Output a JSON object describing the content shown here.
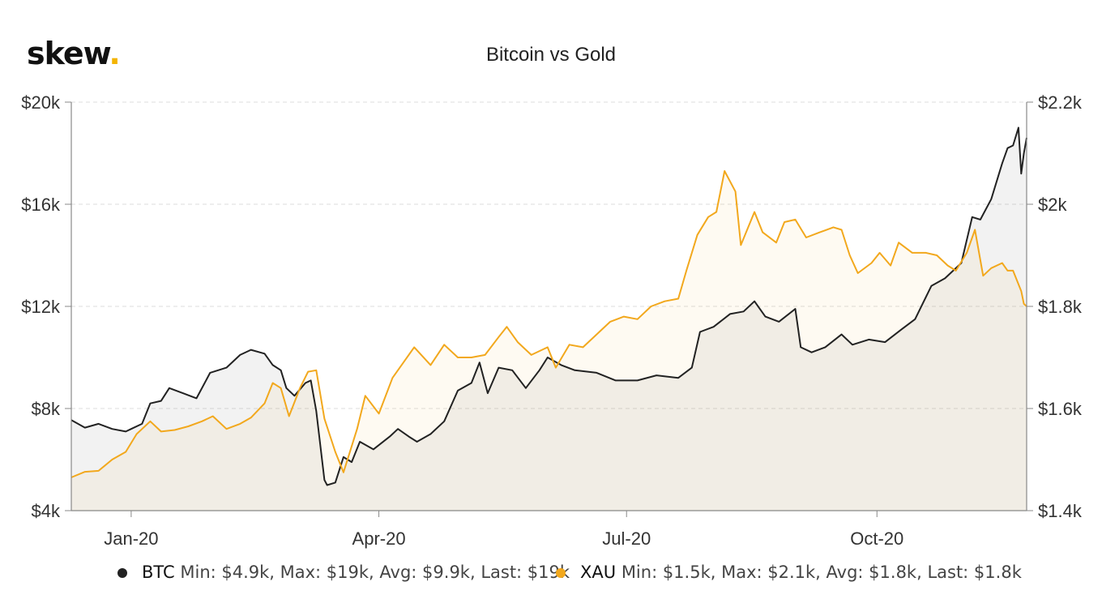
{
  "logo": {
    "text": "skew",
    "dot": "."
  },
  "colors": {
    "btc": "#222222",
    "xau": "#f2a81d",
    "grid": "#dddddd",
    "axis": "#888888"
  },
  "legend": {
    "btc": {
      "name": "BTC",
      "stats": "Min: $4.9k, Max: $19k, Avg: $9.9k, Last: $19k"
    },
    "xau": {
      "name": "XAU",
      "stats": "Min: $1.5k, Max: $2.1k, Avg: $1.8k, Last: $1.8k"
    }
  },
  "chart_data": {
    "type": "line",
    "title": "Bitcoin vs Gold",
    "x_ticks": [
      "Jan-20",
      "Apr-20",
      "Jul-20",
      "Oct-20"
    ],
    "y_left": {
      "ticks": [
        "$20k",
        "$16k",
        "$12k",
        "$8k",
        "$4k"
      ],
      "range": [
        4000,
        20000
      ]
    },
    "y_right": {
      "ticks": [
        "$2.2k",
        "$2k",
        "$1.8k",
        "$1.6k",
        "$1.4k"
      ],
      "range": [
        1400,
        2200
      ]
    },
    "grid": true,
    "legend_position": "bottom",
    "x_range": [
      "2019-12-10",
      "2020-11-25"
    ],
    "series": [
      {
        "name": "BTC",
        "axis": "left",
        "points": [
          [
            "2019-12-10",
            7550
          ],
          [
            "2019-12-15",
            7250
          ],
          [
            "2019-12-20",
            7400
          ],
          [
            "2019-12-25",
            7200
          ],
          [
            "2019-12-30",
            7100
          ],
          [
            "2020-01-01",
            7200
          ],
          [
            "2020-01-05",
            7400
          ],
          [
            "2020-01-08",
            8200
          ],
          [
            "2020-01-12",
            8300
          ],
          [
            "2020-01-15",
            8800
          ],
          [
            "2020-01-20",
            8600
          ],
          [
            "2020-01-25",
            8400
          ],
          [
            "2020-01-30",
            9400
          ],
          [
            "2020-02-05",
            9600
          ],
          [
            "2020-02-10",
            10100
          ],
          [
            "2020-02-14",
            10300
          ],
          [
            "2020-02-19",
            10150
          ],
          [
            "2020-02-22",
            9700
          ],
          [
            "2020-02-25",
            9500
          ],
          [
            "2020-02-27",
            8800
          ],
          [
            "2020-03-01",
            8500
          ],
          [
            "2020-03-05",
            9000
          ],
          [
            "2020-03-07",
            9100
          ],
          [
            "2020-03-09",
            7900
          ],
          [
            "2020-03-12",
            5200
          ],
          [
            "2020-03-13",
            5000
          ],
          [
            "2020-03-16",
            5100
          ],
          [
            "2020-03-19",
            6100
          ],
          [
            "2020-03-22",
            5900
          ],
          [
            "2020-03-25",
            6700
          ],
          [
            "2020-03-30",
            6400
          ],
          [
            "2020-04-05",
            6900
          ],
          [
            "2020-04-08",
            7200
          ],
          [
            "2020-04-12",
            6900
          ],
          [
            "2020-04-15",
            6700
          ],
          [
            "2020-04-20",
            7000
          ],
          [
            "2020-04-25",
            7500
          ],
          [
            "2020-04-30",
            8700
          ],
          [
            "2020-05-05",
            9000
          ],
          [
            "2020-05-08",
            9800
          ],
          [
            "2020-05-11",
            8600
          ],
          [
            "2020-05-15",
            9600
          ],
          [
            "2020-05-20",
            9500
          ],
          [
            "2020-05-25",
            8800
          ],
          [
            "2020-05-30",
            9500
          ],
          [
            "2020-06-02",
            10000
          ],
          [
            "2020-06-07",
            9700
          ],
          [
            "2020-06-12",
            9500
          ],
          [
            "2020-06-20",
            9400
          ],
          [
            "2020-06-27",
            9100
          ],
          [
            "2020-07-05",
            9100
          ],
          [
            "2020-07-12",
            9300
          ],
          [
            "2020-07-20",
            9200
          ],
          [
            "2020-07-25",
            9600
          ],
          [
            "2020-07-28",
            11000
          ],
          [
            "2020-08-02",
            11200
          ],
          [
            "2020-08-08",
            11700
          ],
          [
            "2020-08-13",
            11800
          ],
          [
            "2020-08-17",
            12200
          ],
          [
            "2020-08-21",
            11600
          ],
          [
            "2020-08-26",
            11400
          ],
          [
            "2020-09-01",
            11900
          ],
          [
            "2020-09-03",
            10400
          ],
          [
            "2020-09-07",
            10200
          ],
          [
            "2020-09-12",
            10400
          ],
          [
            "2020-09-18",
            10900
          ],
          [
            "2020-09-22",
            10500
          ],
          [
            "2020-09-28",
            10700
          ],
          [
            "2020-10-04",
            10600
          ],
          [
            "2020-10-10",
            11100
          ],
          [
            "2020-10-15",
            11500
          ],
          [
            "2020-10-21",
            12800
          ],
          [
            "2020-10-26",
            13100
          ],
          [
            "2020-11-01",
            13700
          ],
          [
            "2020-11-05",
            15500
          ],
          [
            "2020-11-08",
            15400
          ],
          [
            "2020-11-12",
            16200
          ],
          [
            "2020-11-16",
            17600
          ],
          [
            "2020-11-18",
            18200
          ],
          [
            "2020-11-20",
            18300
          ],
          [
            "2020-11-22",
            19000
          ],
          [
            "2020-11-23",
            17200
          ],
          [
            "2020-11-24",
            18000
          ],
          [
            "2020-11-25",
            18600
          ]
        ]
      },
      {
        "name": "XAU",
        "axis": "right",
        "points": [
          [
            "2019-12-10",
            1465
          ],
          [
            "2019-12-15",
            1476
          ],
          [
            "2019-12-20",
            1478
          ],
          [
            "2019-12-25",
            1500
          ],
          [
            "2019-12-30",
            1515
          ],
          [
            "2020-01-03",
            1550
          ],
          [
            "2020-01-08",
            1575
          ],
          [
            "2020-01-12",
            1555
          ],
          [
            "2020-01-17",
            1558
          ],
          [
            "2020-01-22",
            1565
          ],
          [
            "2020-01-27",
            1575
          ],
          [
            "2020-01-31",
            1585
          ],
          [
            "2020-02-05",
            1560
          ],
          [
            "2020-02-10",
            1570
          ],
          [
            "2020-02-14",
            1582
          ],
          [
            "2020-02-19",
            1610
          ],
          [
            "2020-02-22",
            1650
          ],
          [
            "2020-02-25",
            1640
          ],
          [
            "2020-02-28",
            1585
          ],
          [
            "2020-03-03",
            1640
          ],
          [
            "2020-03-06",
            1672
          ],
          [
            "2020-03-09",
            1675
          ],
          [
            "2020-03-12",
            1580
          ],
          [
            "2020-03-16",
            1515
          ],
          [
            "2020-03-19",
            1475
          ],
          [
            "2020-03-24",
            1560
          ],
          [
            "2020-03-27",
            1625
          ],
          [
            "2020-04-01",
            1590
          ],
          [
            "2020-04-06",
            1660
          ],
          [
            "2020-04-10",
            1690
          ],
          [
            "2020-04-14",
            1720
          ],
          [
            "2020-04-20",
            1685
          ],
          [
            "2020-04-25",
            1725
          ],
          [
            "2020-04-30",
            1700
          ],
          [
            "2020-05-05",
            1700
          ],
          [
            "2020-05-10",
            1705
          ],
          [
            "2020-05-15",
            1740
          ],
          [
            "2020-05-18",
            1760
          ],
          [
            "2020-05-22",
            1730
          ],
          [
            "2020-05-27",
            1705
          ],
          [
            "2020-06-02",
            1720
          ],
          [
            "2020-06-05",
            1680
          ],
          [
            "2020-06-10",
            1725
          ],
          [
            "2020-06-15",
            1720
          ],
          [
            "2020-06-20",
            1745
          ],
          [
            "2020-06-25",
            1770
          ],
          [
            "2020-06-30",
            1780
          ],
          [
            "2020-07-05",
            1775
          ],
          [
            "2020-07-10",
            1800
          ],
          [
            "2020-07-15",
            1810
          ],
          [
            "2020-07-20",
            1815
          ],
          [
            "2020-07-23",
            1870
          ],
          [
            "2020-07-27",
            1940
          ],
          [
            "2020-07-31",
            1975
          ],
          [
            "2020-08-03",
            1985
          ],
          [
            "2020-08-06",
            2065
          ],
          [
            "2020-08-10",
            2025
          ],
          [
            "2020-08-12",
            1920
          ],
          [
            "2020-08-17",
            1985
          ],
          [
            "2020-08-20",
            1945
          ],
          [
            "2020-08-25",
            1925
          ],
          [
            "2020-08-28",
            1965
          ],
          [
            "2020-09-01",
            1970
          ],
          [
            "2020-09-05",
            1935
          ],
          [
            "2020-09-10",
            1945
          ],
          [
            "2020-09-15",
            1955
          ],
          [
            "2020-09-18",
            1950
          ],
          [
            "2020-09-21",
            1900
          ],
          [
            "2020-09-24",
            1865
          ],
          [
            "2020-09-29",
            1885
          ],
          [
            "2020-10-02",
            1905
          ],
          [
            "2020-10-06",
            1880
          ],
          [
            "2020-10-09",
            1925
          ],
          [
            "2020-10-14",
            1905
          ],
          [
            "2020-10-19",
            1905
          ],
          [
            "2020-10-23",
            1900
          ],
          [
            "2020-10-27",
            1880
          ],
          [
            "2020-10-30",
            1870
          ],
          [
            "2020-11-03",
            1905
          ],
          [
            "2020-11-06",
            1950
          ],
          [
            "2020-11-09",
            1860
          ],
          [
            "2020-11-12",
            1875
          ],
          [
            "2020-11-16",
            1885
          ],
          [
            "2020-11-18",
            1870
          ],
          [
            "2020-11-20",
            1870
          ],
          [
            "2020-11-23",
            1830
          ],
          [
            "2020-11-24",
            1805
          ],
          [
            "2020-11-25",
            1800
          ]
        ]
      }
    ]
  }
}
